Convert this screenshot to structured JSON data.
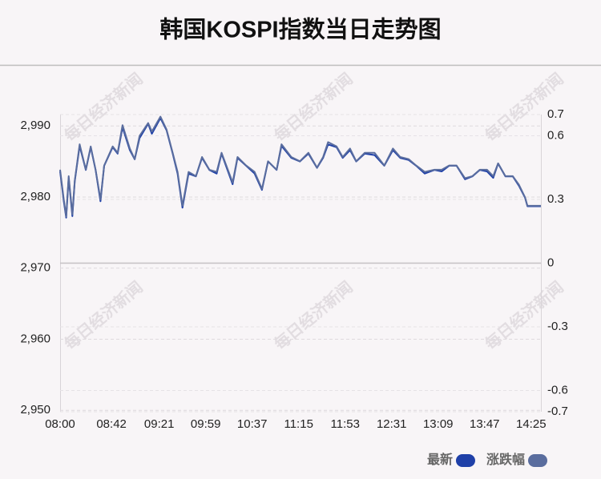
{
  "chart_data": {
    "type": "line",
    "title": "韩国KOSPI指数当日走势图",
    "watermark": "每日经济新闻",
    "x": [
      "08:00",
      "08:03",
      "08:05",
      "08:07",
      "08:10",
      "08:12",
      "08:16",
      "08:21",
      "08:25",
      "08:29",
      "08:33",
      "08:36",
      "08:43",
      "08:47",
      "08:51",
      "08:57",
      "09:01",
      "09:05",
      "09:12",
      "09:15",
      "09:22",
      "09:27",
      "09:32",
      "09:36",
      "09:40",
      "09:45",
      "09:51",
      "09:56",
      "10:02",
      "10:08",
      "10:12",
      "10:21",
      "10:25",
      "10:32",
      "10:39",
      "10:45",
      "10:50",
      "10:57",
      "11:01",
      "11:09",
      "11:16",
      "11:23",
      "11:30",
      "11:35",
      "11:39",
      "11:46",
      "11:51",
      "11:57",
      "12:02",
      "12:09",
      "12:17",
      "12:25",
      "12:32",
      "12:38",
      "12:45",
      "12:51",
      "12:58",
      "13:06",
      "13:12",
      "13:18",
      "13:24",
      "13:31",
      "13:37",
      "13:43",
      "13:49",
      "13:54",
      "13:58",
      "14:04",
      "14:10",
      "14:15",
      "14:20",
      "14:22",
      "14:33"
    ],
    "series": [
      {
        "name": "最新",
        "color": "#1f40a8",
        "axis": "y",
        "values": [
          2983.6,
          2979.4,
          2977.1,
          2982.7,
          2977.3,
          2982.2,
          2987.2,
          2983.8,
          2987.0,
          2983.8,
          2979.4,
          2984.4,
          2987.0,
          2986.1,
          2989.8,
          2986.6,
          2985.3,
          2988.3,
          2990.3,
          2988.9,
          2991.1,
          2989.4,
          2986.1,
          2983.3,
          2978.5,
          2983.3,
          2982.9,
          2985.5,
          2983.8,
          2983.3,
          2986.1,
          2981.8,
          2985.5,
          2984.4,
          2983.3,
          2981.0,
          2985.0,
          2983.8,
          2987.2,
          2985.5,
          2985.0,
          2986.1,
          2984.1,
          2985.5,
          2987.4,
          2987.0,
          2985.5,
          2986.6,
          2985.0,
          2986.1,
          2985.9,
          2984.4,
          2986.6,
          2985.5,
          2985.2,
          2984.4,
          2983.3,
          2983.8,
          2983.6,
          2984.4,
          2984.4,
          2982.5,
          2982.9,
          2983.8,
          2983.6,
          2982.7,
          2984.7,
          2982.9,
          2982.9,
          2981.6,
          2979.9,
          2978.7,
          2978.7
        ]
      },
      {
        "name": "涨跌幅",
        "color": "#5a6d9e",
        "axis": "y2",
        "values": [
          0.44,
          0.3,
          0.22,
          0.41,
          0.23,
          0.39,
          0.56,
          0.44,
          0.55,
          0.44,
          0.3,
          0.46,
          0.55,
          0.52,
          0.65,
          0.54,
          0.49,
          0.6,
          0.66,
          0.62,
          0.69,
          0.63,
          0.52,
          0.43,
          0.27,
          0.43,
          0.41,
          0.5,
          0.44,
          0.43,
          0.52,
          0.38,
          0.5,
          0.46,
          0.43,
          0.35,
          0.48,
          0.44,
          0.56,
          0.5,
          0.48,
          0.52,
          0.45,
          0.5,
          0.57,
          0.55,
          0.5,
          0.54,
          0.48,
          0.52,
          0.52,
          0.46,
          0.54,
          0.5,
          0.49,
          0.46,
          0.43,
          0.44,
          0.44,
          0.46,
          0.46,
          0.4,
          0.41,
          0.44,
          0.44,
          0.41,
          0.47,
          0.41,
          0.41,
          0.37,
          0.31,
          0.27,
          0.27
        ]
      }
    ],
    "xlim": [
      "08:00",
      "14:33"
    ],
    "xticks": [
      "08:00",
      "08:42",
      "09:21",
      "09:59",
      "10:37",
      "11:15",
      "11:53",
      "12:31",
      "13:09",
      "13:47",
      "14:25"
    ],
    "ylim": [
      2949.8,
      2991.6
    ],
    "yticks": [
      {
        "value": 2950,
        "label": "2,950"
      },
      {
        "value": 2960,
        "label": "2,960"
      },
      {
        "value": 2970,
        "label": "2,970"
      },
      {
        "value": 2980,
        "label": "2,980"
      },
      {
        "value": 2990,
        "label": "2,990"
      }
    ],
    "y2lim": [
      -0.7,
      0.7
    ],
    "y2ticks": [
      -0.7,
      -0.6,
      -0.3,
      0,
      0.3,
      0.6,
      0.7
    ],
    "grid": true,
    "legend": "bottom-right"
  }
}
